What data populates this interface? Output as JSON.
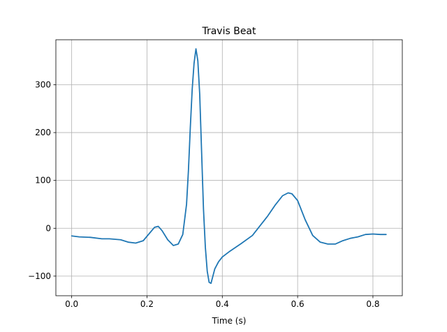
{
  "chart_data": {
    "type": "line",
    "title": "Travis Beat",
    "xlabel": "Time (s)",
    "ylabel": "",
    "xlim": [
      -0.042,
      0.878
    ],
    "ylim": [
      -141,
      394
    ],
    "xticks": [
      0.0,
      0.2,
      0.4,
      0.6,
      0.8
    ],
    "xtick_labels": [
      "0.0",
      "0.2",
      "0.4",
      "0.6",
      "0.8"
    ],
    "yticks": [
      -100,
      0,
      100,
      200,
      300
    ],
    "ytick_labels": [
      "−100",
      "0",
      "100",
      "200",
      "300"
    ],
    "grid": true,
    "series": [
      {
        "color": "#1f77b4",
        "x": [
          0.0,
          0.02,
          0.05,
          0.08,
          0.1,
          0.13,
          0.15,
          0.17,
          0.19,
          0.205,
          0.22,
          0.23,
          0.24,
          0.255,
          0.27,
          0.283,
          0.295,
          0.305,
          0.31,
          0.315,
          0.32,
          0.325,
          0.33,
          0.335,
          0.34,
          0.345,
          0.35,
          0.355,
          0.36,
          0.365,
          0.37,
          0.375,
          0.38,
          0.39,
          0.4,
          0.42,
          0.45,
          0.48,
          0.5,
          0.52,
          0.54,
          0.56,
          0.575,
          0.585,
          0.6,
          0.62,
          0.64,
          0.66,
          0.68,
          0.7,
          0.72,
          0.74,
          0.76,
          0.78,
          0.8,
          0.82,
          0.835
        ],
        "y": [
          -16,
          -18,
          -19,
          -22,
          -22,
          -24,
          -29,
          -31,
          -26,
          -12,
          2,
          4,
          -5,
          -24,
          -36,
          -33,
          -13,
          50,
          120,
          210,
          290,
          345,
          375,
          350,
          280,
          160,
          40,
          -40,
          -90,
          -113,
          -115,
          -100,
          -85,
          -70,
          -60,
          -48,
          -32,
          -15,
          5,
          25,
          48,
          68,
          74,
          72,
          58,
          18,
          -15,
          -29,
          -33,
          -33,
          -26,
          -21,
          -18,
          -13,
          -12,
          -13,
          -13
        ]
      }
    ]
  }
}
